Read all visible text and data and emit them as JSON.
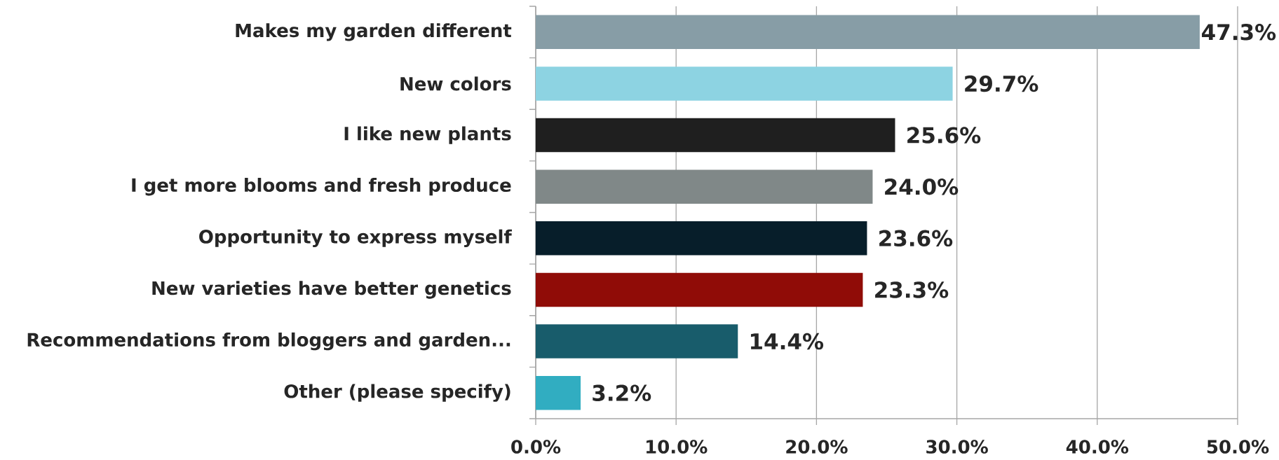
{
  "chart_data": {
    "type": "bar",
    "orientation": "horizontal",
    "categories": [
      "Makes my garden different",
      "New colors",
      "I like new plants",
      "I get more blooms and fresh produce",
      "Opportunity to express myself",
      "New varieties have better genetics",
      "Recommendations from bloggers and garden...",
      "Other (please specify)"
    ],
    "values": [
      47.3,
      29.7,
      25.6,
      24.0,
      23.6,
      23.3,
      14.4,
      3.2
    ],
    "colors": [
      "#879da6",
      "#8dd3e2",
      "#1f1f1f",
      "#808888",
      "#071e2a",
      "#900c07",
      "#185c6b",
      "#31adc1"
    ],
    "value_labels": [
      "47.3%",
      "29.7%",
      "25.6%",
      "24.0%",
      "23.6%",
      "23.3%",
      "14.4%",
      "3.2%"
    ],
    "xlim": [
      0,
      50
    ],
    "xticks": [
      {
        "value": 0,
        "label": "0.0%"
      },
      {
        "value": 10,
        "label": "10.0%"
      },
      {
        "value": 20,
        "label": "20.0%"
      },
      {
        "value": 30,
        "label": "30.0%"
      },
      {
        "value": 40,
        "label": "40.0%"
      },
      {
        "value": 50,
        "label": "50.0%"
      }
    ],
    "grid": "x"
  }
}
